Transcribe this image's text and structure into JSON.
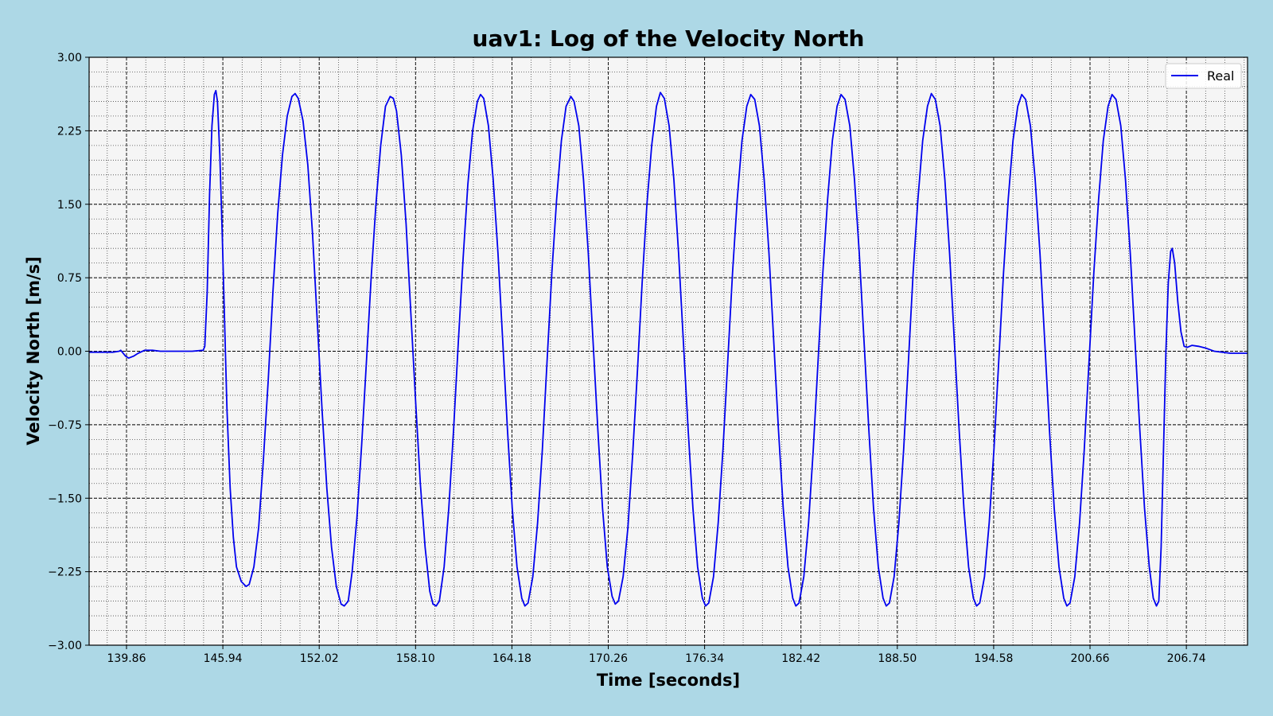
{
  "chart_data": {
    "type": "line",
    "title": "uav1: Log of the Velocity North",
    "xlabel": "Time [seconds]",
    "ylabel": "Velocity North [m/s]",
    "xlim": [
      137.5,
      210.6
    ],
    "ylim": [
      -3.0,
      3.0
    ],
    "x_ticks": [
      139.86,
      145.94,
      152.02,
      158.1,
      164.18,
      170.26,
      176.34,
      182.42,
      188.5,
      194.58,
      200.66,
      206.74
    ],
    "x_tick_labels": [
      "139.86",
      "145.94",
      "152.02",
      "158.10",
      "164.18",
      "170.26",
      "176.34",
      "182.42",
      "188.50",
      "194.58",
      "200.66",
      "206.74"
    ],
    "y_ticks": [
      3.0,
      2.25,
      1.5,
      0.75,
      0.0,
      -0.75,
      -1.5,
      -2.25,
      -3.0
    ],
    "y_tick_labels": [
      "3.00",
      "2.25",
      "1.50",
      "0.75",
      "0.00",
      "−0.75",
      "−1.50",
      "−2.25",
      "−3.00"
    ],
    "grid": true,
    "minor_grid": true,
    "legend_position": "top-right",
    "background_color": "#add8e6",
    "plot_background_color": "#f5f5f5",
    "series": [
      {
        "name": "Real",
        "color": "#0000ee",
        "points": [
          [
            137.5,
            -0.01
          ],
          [
            139.0,
            -0.01
          ],
          [
            139.4,
            0.0
          ],
          [
            139.5,
            0.01
          ],
          [
            139.8,
            -0.05
          ],
          [
            140.0,
            -0.07
          ],
          [
            140.3,
            -0.05
          ],
          [
            140.6,
            -0.02
          ],
          [
            141.0,
            0.01
          ],
          [
            141.5,
            0.01
          ],
          [
            142.0,
            0.0
          ],
          [
            143.0,
            0.0
          ],
          [
            144.0,
            0.0
          ],
          [
            144.7,
            0.01
          ],
          [
            144.8,
            0.05
          ],
          [
            144.95,
            0.6
          ],
          [
            145.1,
            1.6
          ],
          [
            145.25,
            2.3
          ],
          [
            145.4,
            2.62
          ],
          [
            145.5,
            2.66
          ],
          [
            145.6,
            2.55
          ],
          [
            145.75,
            2.0
          ],
          [
            145.9,
            1.2
          ],
          [
            146.05,
            0.3
          ],
          [
            146.2,
            -0.6
          ],
          [
            146.4,
            -1.4
          ],
          [
            146.6,
            -1.9
          ],
          [
            146.8,
            -2.2
          ],
          [
            147.1,
            -2.35
          ],
          [
            147.4,
            -2.4
          ],
          [
            147.6,
            -2.38
          ],
          [
            147.9,
            -2.2
          ],
          [
            148.2,
            -1.8
          ],
          [
            148.5,
            -1.1
          ],
          [
            148.8,
            -0.3
          ],
          [
            149.1,
            0.6
          ],
          [
            149.4,
            1.4
          ],
          [
            149.7,
            2.0
          ],
          [
            150.0,
            2.4
          ],
          [
            150.3,
            2.6
          ],
          [
            150.5,
            2.63
          ],
          [
            150.7,
            2.58
          ],
          [
            151.0,
            2.35
          ],
          [
            151.3,
            1.9
          ],
          [
            151.6,
            1.2
          ],
          [
            151.9,
            0.3
          ],
          [
            152.2,
            -0.6
          ],
          [
            152.5,
            -1.4
          ],
          [
            152.8,
            -2.0
          ],
          [
            153.1,
            -2.4
          ],
          [
            153.4,
            -2.58
          ],
          [
            153.6,
            -2.6
          ],
          [
            153.85,
            -2.55
          ],
          [
            154.1,
            -2.25
          ],
          [
            154.4,
            -1.7
          ],
          [
            154.7,
            -0.95
          ],
          [
            155.0,
            -0.1
          ],
          [
            155.3,
            0.75
          ],
          [
            155.6,
            1.5
          ],
          [
            155.9,
            2.1
          ],
          [
            156.2,
            2.5
          ],
          [
            156.5,
            2.6
          ],
          [
            156.7,
            2.58
          ],
          [
            156.9,
            2.45
          ],
          [
            157.2,
            2.0
          ],
          [
            157.5,
            1.3
          ],
          [
            157.8,
            0.4
          ],
          [
            158.1,
            -0.5
          ],
          [
            158.4,
            -1.35
          ],
          [
            158.7,
            -2.0
          ],
          [
            159.0,
            -2.45
          ],
          [
            159.2,
            -2.58
          ],
          [
            159.4,
            -2.6
          ],
          [
            159.6,
            -2.55
          ],
          [
            159.9,
            -2.2
          ],
          [
            160.2,
            -1.6
          ],
          [
            160.5,
            -0.8
          ],
          [
            160.8,
            0.1
          ],
          [
            161.1,
            0.95
          ],
          [
            161.4,
            1.7
          ],
          [
            161.7,
            2.25
          ],
          [
            162.0,
            2.55
          ],
          [
            162.2,
            2.62
          ],
          [
            162.4,
            2.58
          ],
          [
            162.7,
            2.3
          ],
          [
            163.0,
            1.75
          ],
          [
            163.3,
            1.0
          ],
          [
            163.6,
            0.1
          ],
          [
            163.9,
            -0.8
          ],
          [
            164.2,
            -1.6
          ],
          [
            164.5,
            -2.2
          ],
          [
            164.8,
            -2.52
          ],
          [
            165.0,
            -2.6
          ],
          [
            165.2,
            -2.57
          ],
          [
            165.5,
            -2.3
          ],
          [
            165.8,
            -1.75
          ],
          [
            166.1,
            -1.0
          ],
          [
            166.4,
            -0.1
          ],
          [
            166.7,
            0.8
          ],
          [
            167.0,
            1.55
          ],
          [
            167.3,
            2.15
          ],
          [
            167.6,
            2.5
          ],
          [
            167.9,
            2.6
          ],
          [
            168.1,
            2.55
          ],
          [
            168.4,
            2.3
          ],
          [
            168.7,
            1.75
          ],
          [
            169.0,
            1.0
          ],
          [
            169.3,
            0.1
          ],
          [
            169.6,
            -0.8
          ],
          [
            169.9,
            -1.6
          ],
          [
            170.2,
            -2.2
          ],
          [
            170.5,
            -2.5
          ],
          [
            170.7,
            -2.58
          ],
          [
            170.9,
            -2.55
          ],
          [
            171.2,
            -2.3
          ],
          [
            171.5,
            -1.8
          ],
          [
            171.8,
            -1.05
          ],
          [
            172.1,
            -0.2
          ],
          [
            172.4,
            0.7
          ],
          [
            172.7,
            1.5
          ],
          [
            173.0,
            2.1
          ],
          [
            173.3,
            2.5
          ],
          [
            173.55,
            2.64
          ],
          [
            173.8,
            2.58
          ],
          [
            174.1,
            2.3
          ],
          [
            174.4,
            1.75
          ],
          [
            174.7,
            1.0
          ],
          [
            175.0,
            0.1
          ],
          [
            175.3,
            -0.8
          ],
          [
            175.6,
            -1.6
          ],
          [
            175.9,
            -2.2
          ],
          [
            176.2,
            -2.52
          ],
          [
            176.4,
            -2.6
          ],
          [
            176.6,
            -2.57
          ],
          [
            176.9,
            -2.3
          ],
          [
            177.2,
            -1.75
          ],
          [
            177.5,
            -1.0
          ],
          [
            177.8,
            -0.1
          ],
          [
            178.1,
            0.8
          ],
          [
            178.4,
            1.55
          ],
          [
            178.7,
            2.15
          ],
          [
            179.0,
            2.5
          ],
          [
            179.25,
            2.62
          ],
          [
            179.5,
            2.57
          ],
          [
            179.8,
            2.3
          ],
          [
            180.1,
            1.75
          ],
          [
            180.4,
            1.0
          ],
          [
            180.7,
            0.1
          ],
          [
            181.0,
            -0.8
          ],
          [
            181.3,
            -1.6
          ],
          [
            181.6,
            -2.2
          ],
          [
            181.9,
            -2.52
          ],
          [
            182.1,
            -2.6
          ],
          [
            182.3,
            -2.57
          ],
          [
            182.6,
            -2.3
          ],
          [
            182.9,
            -1.75
          ],
          [
            183.2,
            -1.0
          ],
          [
            183.5,
            -0.1
          ],
          [
            183.8,
            0.8
          ],
          [
            184.1,
            1.55
          ],
          [
            184.4,
            2.15
          ],
          [
            184.7,
            2.5
          ],
          [
            184.95,
            2.62
          ],
          [
            185.2,
            2.57
          ],
          [
            185.5,
            2.3
          ],
          [
            185.8,
            1.75
          ],
          [
            186.1,
            1.0
          ],
          [
            186.4,
            0.1
          ],
          [
            186.7,
            -0.8
          ],
          [
            187.0,
            -1.6
          ],
          [
            187.3,
            -2.2
          ],
          [
            187.6,
            -2.52
          ],
          [
            187.8,
            -2.6
          ],
          [
            188.0,
            -2.57
          ],
          [
            188.3,
            -2.3
          ],
          [
            188.6,
            -1.75
          ],
          [
            188.9,
            -1.0
          ],
          [
            189.2,
            -0.1
          ],
          [
            189.5,
            0.8
          ],
          [
            189.8,
            1.55
          ],
          [
            190.1,
            2.15
          ],
          [
            190.4,
            2.5
          ],
          [
            190.65,
            2.63
          ],
          [
            190.9,
            2.57
          ],
          [
            191.2,
            2.3
          ],
          [
            191.5,
            1.75
          ],
          [
            191.8,
            1.0
          ],
          [
            192.1,
            0.1
          ],
          [
            192.4,
            -0.8
          ],
          [
            192.7,
            -1.6
          ],
          [
            193.0,
            -2.2
          ],
          [
            193.3,
            -2.52
          ],
          [
            193.5,
            -2.6
          ],
          [
            193.7,
            -2.57
          ],
          [
            194.0,
            -2.3
          ],
          [
            194.3,
            -1.75
          ],
          [
            194.6,
            -1.0
          ],
          [
            194.9,
            -0.1
          ],
          [
            195.2,
            0.8
          ],
          [
            195.5,
            1.55
          ],
          [
            195.8,
            2.15
          ],
          [
            196.1,
            2.5
          ],
          [
            196.35,
            2.62
          ],
          [
            196.6,
            2.57
          ],
          [
            196.9,
            2.3
          ],
          [
            197.2,
            1.75
          ],
          [
            197.5,
            1.0
          ],
          [
            197.8,
            0.1
          ],
          [
            198.1,
            -0.8
          ],
          [
            198.4,
            -1.6
          ],
          [
            198.7,
            -2.2
          ],
          [
            199.0,
            -2.52
          ],
          [
            199.2,
            -2.6
          ],
          [
            199.4,
            -2.57
          ],
          [
            199.7,
            -2.3
          ],
          [
            200.0,
            -1.75
          ],
          [
            200.3,
            -1.0
          ],
          [
            200.6,
            -0.1
          ],
          [
            200.9,
            0.8
          ],
          [
            201.2,
            1.55
          ],
          [
            201.5,
            2.15
          ],
          [
            201.8,
            2.5
          ],
          [
            202.05,
            2.62
          ],
          [
            202.3,
            2.57
          ],
          [
            202.6,
            2.3
          ],
          [
            202.9,
            1.75
          ],
          [
            203.2,
            1.0
          ],
          [
            203.5,
            0.1
          ],
          [
            203.8,
            -0.8
          ],
          [
            204.1,
            -1.6
          ],
          [
            204.4,
            -2.2
          ],
          [
            204.65,
            -2.52
          ],
          [
            204.85,
            -2.6
          ],
          [
            205.0,
            -2.55
          ],
          [
            205.15,
            -2.0
          ],
          [
            205.3,
            -1.0
          ],
          [
            205.45,
            0.0
          ],
          [
            205.6,
            0.7
          ],
          [
            205.75,
            1.02
          ],
          [
            205.85,
            1.05
          ],
          [
            206.0,
            0.9
          ],
          [
            206.2,
            0.5
          ],
          [
            206.4,
            0.2
          ],
          [
            206.6,
            0.05
          ],
          [
            206.8,
            0.04
          ],
          [
            207.1,
            0.06
          ],
          [
            207.5,
            0.05
          ],
          [
            208.0,
            0.03
          ],
          [
            208.5,
            0.0
          ],
          [
            209.0,
            -0.01
          ],
          [
            209.5,
            -0.02
          ],
          [
            210.6,
            -0.02
          ]
        ]
      }
    ]
  }
}
